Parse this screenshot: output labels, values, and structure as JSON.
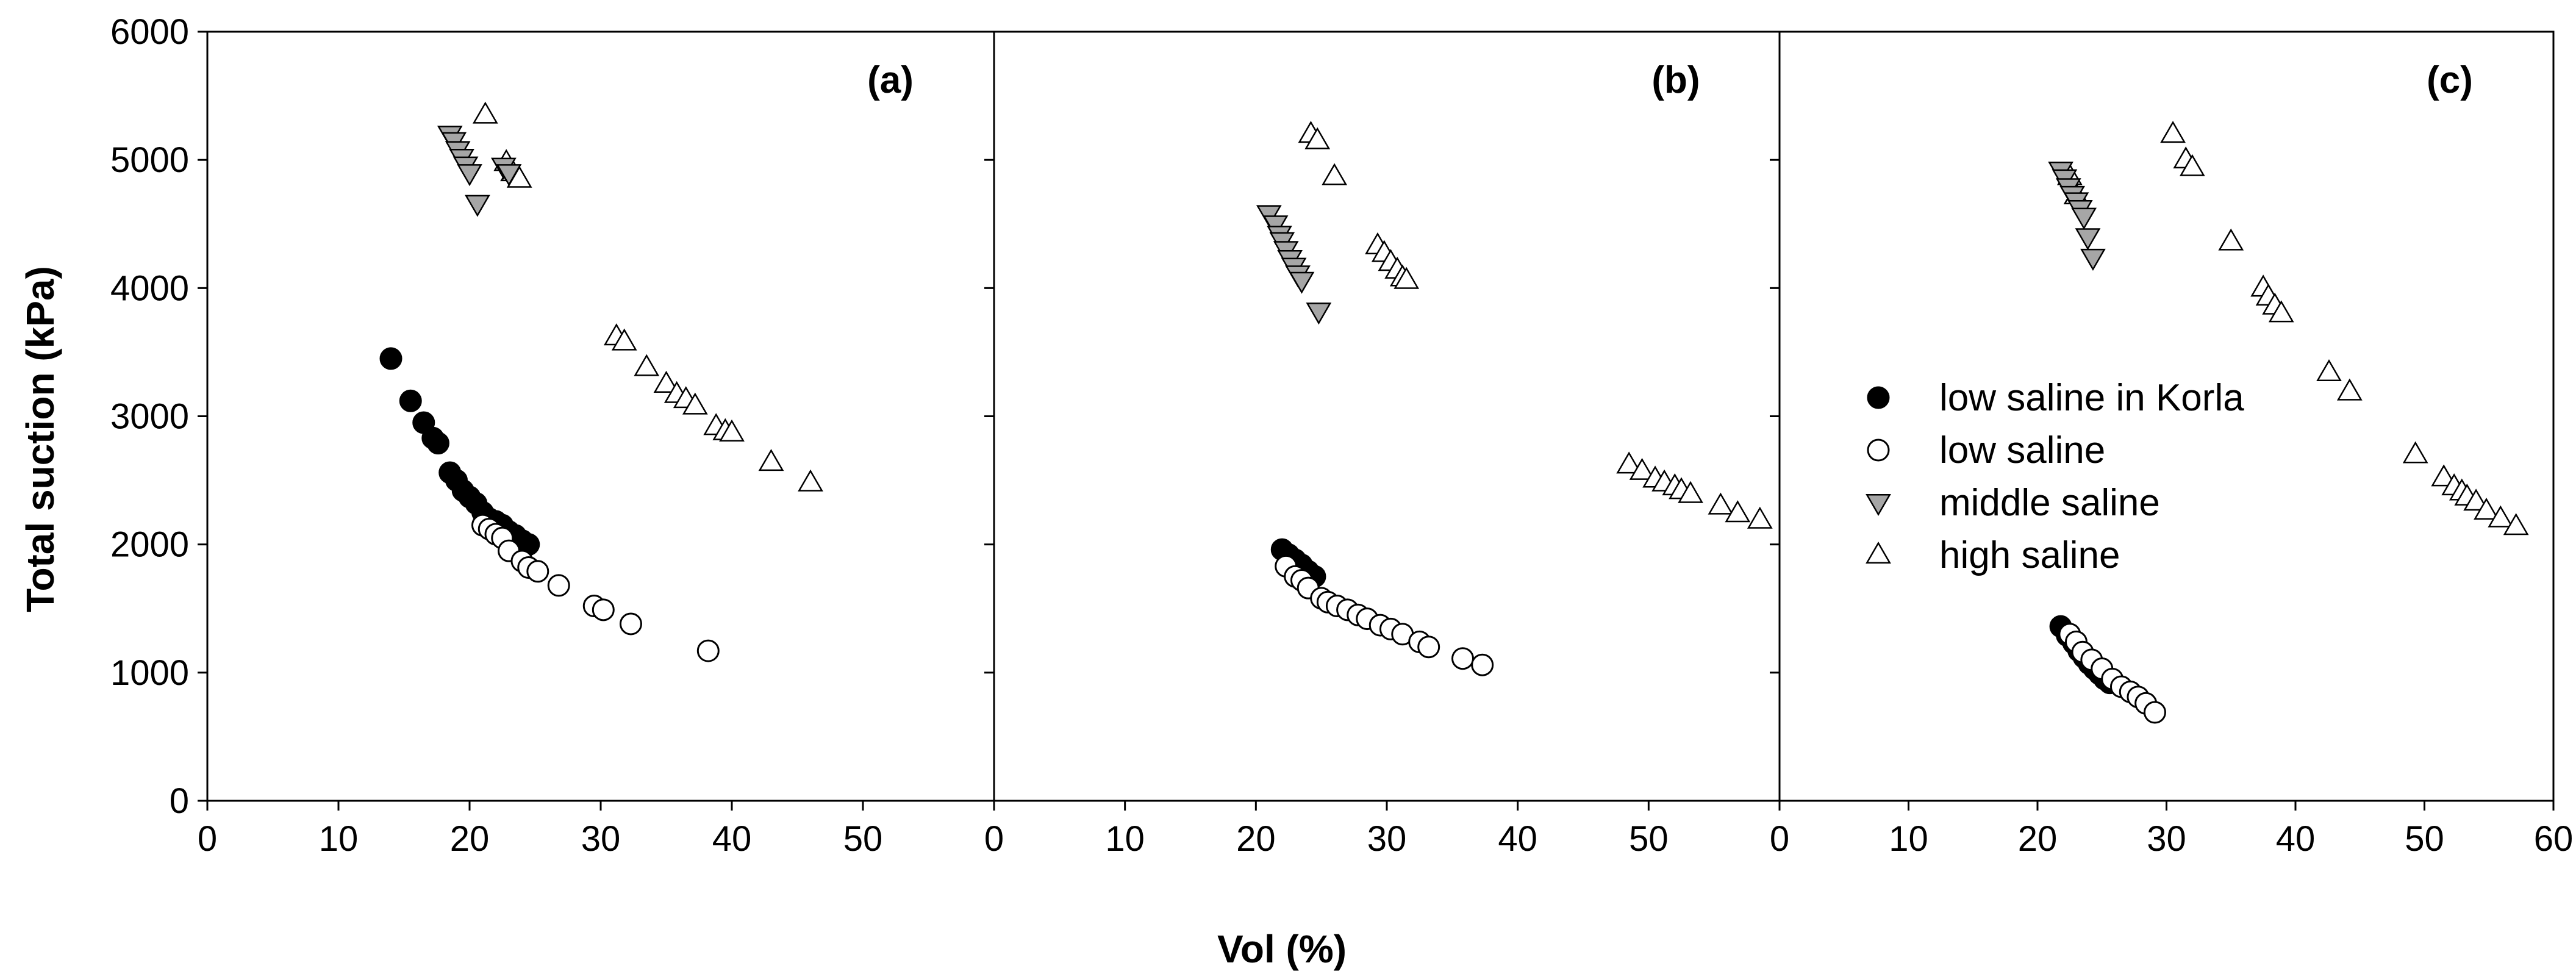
{
  "figure": {
    "xlabel": "Vol (%)",
    "ylabel": "Total suction (kPa)"
  },
  "legend": {
    "items": [
      {
        "label": "low saline in Korla",
        "marker": "filled-circle"
      },
      {
        "label": "low saline",
        "marker": "open-circle"
      },
      {
        "label": "middle saline",
        "marker": "down-triangle"
      },
      {
        "label": "high saline",
        "marker": "up-triangle"
      }
    ]
  },
  "colors": {
    "filled": "#000000",
    "open_fill": "#ffffff",
    "middle_fill": "#a6a6a6",
    "stroke": "#000000"
  },
  "chart_data": [
    {
      "type": "scatter",
      "panel_label": "(a)",
      "xlim": [
        0,
        60
      ],
      "ylim": [
        0,
        6000
      ],
      "xticks": [
        "0",
        "10",
        "20",
        "30",
        "40",
        "50"
      ],
      "yticks": [
        "0",
        "1000",
        "2000",
        "3000",
        "4000",
        "5000",
        "6000"
      ],
      "series": [
        {
          "name": "low saline in Korla",
          "marker": "filled-circle",
          "points": [
            [
              14,
              3450
            ],
            [
              15.5,
              3120
            ],
            [
              16.5,
              2950
            ],
            [
              17.2,
              2830
            ],
            [
              17.6,
              2790
            ],
            [
              18.5,
              2560
            ],
            [
              19.0,
              2500
            ],
            [
              19.5,
              2420
            ],
            [
              20.0,
              2370
            ],
            [
              20.5,
              2320
            ],
            [
              21.0,
              2250
            ],
            [
              21.5,
              2200
            ],
            [
              22.0,
              2180
            ],
            [
              22.5,
              2150
            ],
            [
              23.0,
              2100
            ],
            [
              23.5,
              2070
            ],
            [
              24.0,
              2030
            ],
            [
              24.5,
              2000
            ]
          ]
        },
        {
          "name": "low saline",
          "marker": "open-circle",
          "points": [
            [
              21.0,
              2150
            ],
            [
              21.5,
              2120
            ],
            [
              22.0,
              2080
            ],
            [
              22.5,
              2050
            ],
            [
              23.0,
              1950
            ],
            [
              24.0,
              1870
            ],
            [
              24.5,
              1820
            ],
            [
              25.2,
              1790
            ],
            [
              26.8,
              1680
            ],
            [
              29.5,
              1520
            ],
            [
              30.2,
              1490
            ],
            [
              32.3,
              1380
            ],
            [
              38.2,
              1170
            ]
          ]
        },
        {
          "name": "middle saline",
          "marker": "down-triangle",
          "points": [
            [
              18.5,
              5200
            ],
            [
              18.8,
              5150
            ],
            [
              19.1,
              5080
            ],
            [
              19.4,
              5020
            ],
            [
              19.7,
              4960
            ],
            [
              20.0,
              4900
            ],
            [
              20.6,
              4660
            ],
            [
              22.6,
              4950
            ],
            [
              23.0,
              4900
            ]
          ]
        },
        {
          "name": "high saline",
          "marker": "up-triangle",
          "points": [
            [
              21.2,
              5350
            ],
            [
              22.8,
              4980
            ],
            [
              23.3,
              4900
            ],
            [
              23.8,
              4850
            ],
            [
              31.2,
              3620
            ],
            [
              31.8,
              3580
            ],
            [
              33.5,
              3380
            ],
            [
              35.0,
              3250
            ],
            [
              35.8,
              3170
            ],
            [
              36.5,
              3130
            ],
            [
              37.2,
              3080
            ],
            [
              38.8,
              2920
            ],
            [
              39.5,
              2880
            ],
            [
              40.0,
              2870
            ],
            [
              43.0,
              2640
            ],
            [
              46.0,
              2480
            ]
          ]
        }
      ]
    },
    {
      "type": "scatter",
      "panel_label": "(b)",
      "xlim": [
        0,
        60
      ],
      "ylim": [
        0,
        6000
      ],
      "xticks": [
        "0",
        "10",
        "20",
        "30",
        "40",
        "50"
      ],
      "yticks": [],
      "series": [
        {
          "name": "low saline in Korla",
          "marker": "filled-circle",
          "points": [
            [
              22.0,
              1960
            ],
            [
              22.5,
              1920
            ],
            [
              23.0,
              1880
            ],
            [
              23.5,
              1840
            ],
            [
              24.0,
              1790
            ],
            [
              24.5,
              1750
            ]
          ]
        },
        {
          "name": "low saline",
          "marker": "open-circle",
          "points": [
            [
              22.3,
              1830
            ],
            [
              23.0,
              1750
            ],
            [
              23.5,
              1720
            ],
            [
              24.0,
              1660
            ],
            [
              25.0,
              1580
            ],
            [
              25.5,
              1550
            ],
            [
              26.2,
              1520
            ],
            [
              27.0,
              1490
            ],
            [
              27.8,
              1450
            ],
            [
              28.5,
              1420
            ],
            [
              29.5,
              1370
            ],
            [
              30.3,
              1340
            ],
            [
              31.2,
              1300
            ],
            [
              32.5,
              1240
            ],
            [
              33.2,
              1200
            ],
            [
              35.8,
              1110
            ],
            [
              37.3,
              1060
            ]
          ]
        },
        {
          "name": "middle saline",
          "marker": "down-triangle",
          "points": [
            [
              21.0,
              4580
            ],
            [
              21.5,
              4500
            ],
            [
              21.8,
              4420
            ],
            [
              22.0,
              4370
            ],
            [
              22.3,
              4300
            ],
            [
              22.6,
              4230
            ],
            [
              22.9,
              4170
            ],
            [
              23.2,
              4110
            ],
            [
              23.5,
              4060
            ],
            [
              24.8,
              3820
            ]
          ]
        },
        {
          "name": "high saline",
          "marker": "up-triangle",
          "points": [
            [
              24.2,
              5200
            ],
            [
              24.7,
              5150
            ],
            [
              26.0,
              4870
            ],
            [
              29.3,
              4330
            ],
            [
              29.8,
              4270
            ],
            [
              30.3,
              4200
            ],
            [
              30.8,
              4140
            ],
            [
              31.2,
              4080
            ],
            [
              31.5,
              4060
            ],
            [
              48.5,
              2620
            ],
            [
              49.5,
              2570
            ],
            [
              50.5,
              2510
            ],
            [
              51.2,
              2480
            ],
            [
              52.0,
              2450
            ],
            [
              52.5,
              2420
            ],
            [
              53.2,
              2390
            ],
            [
              55.5,
              2300
            ],
            [
              56.8,
              2240
            ],
            [
              58.5,
              2190
            ]
          ]
        }
      ]
    },
    {
      "type": "scatter",
      "panel_label": "(c)",
      "xlim": [
        0,
        60
      ],
      "ylim": [
        0,
        6000
      ],
      "xticks": [
        "0",
        "10",
        "20",
        "30",
        "40",
        "50",
        "60"
      ],
      "yticks": [],
      "series": [
        {
          "name": "low saline in Korla",
          "marker": "filled-circle",
          "points": [
            [
              21.8,
              1360
            ],
            [
              22.3,
              1290
            ],
            [
              22.8,
              1230
            ],
            [
              23.2,
              1170
            ],
            [
              23.6,
              1120
            ],
            [
              24.0,
              1070
            ],
            [
              24.4,
              1030
            ],
            [
              24.8,
              990
            ],
            [
              25.2,
              950
            ],
            [
              25.6,
              920
            ]
          ]
        },
        {
          "name": "low saline",
          "marker": "open-circle",
          "points": [
            [
              22.5,
              1300
            ],
            [
              23.0,
              1240
            ],
            [
              23.5,
              1160
            ],
            [
              24.2,
              1100
            ],
            [
              25.0,
              1030
            ],
            [
              25.8,
              950
            ],
            [
              26.5,
              890
            ],
            [
              27.2,
              850
            ],
            [
              27.8,
              810
            ],
            [
              28.4,
              760
            ],
            [
              29.1,
              690
            ]
          ]
        },
        {
          "name": "middle saline",
          "marker": "down-triangle",
          "points": [
            [
              21.8,
              4920
            ],
            [
              22.1,
              4860
            ],
            [
              22.4,
              4790
            ],
            [
              22.7,
              4730
            ],
            [
              23.0,
              4680
            ],
            [
              23.3,
              4620
            ],
            [
              23.6,
              4560
            ],
            [
              23.9,
              4400
            ],
            [
              24.3,
              4240
            ]
          ]
        },
        {
          "name": "high saline",
          "marker": "up-triangle",
          "points": [
            [
              22.5,
              4870
            ],
            [
              23.0,
              4720
            ],
            [
              30.5,
              5200
            ],
            [
              31.5,
              5000
            ],
            [
              32.0,
              4940
            ],
            [
              35.0,
              4360
            ],
            [
              37.5,
              4000
            ],
            [
              37.9,
              3930
            ],
            [
              38.4,
              3860
            ],
            [
              38.9,
              3800
            ],
            [
              42.6,
              3340
            ],
            [
              44.2,
              3190
            ],
            [
              49.3,
              2700
            ],
            [
              51.5,
              2520
            ],
            [
              52.3,
              2450
            ],
            [
              52.9,
              2410
            ],
            [
              53.3,
              2370
            ],
            [
              54.0,
              2330
            ],
            [
              54.8,
              2260
            ],
            [
              55.9,
              2200
            ],
            [
              57.1,
              2140
            ]
          ]
        }
      ]
    }
  ]
}
